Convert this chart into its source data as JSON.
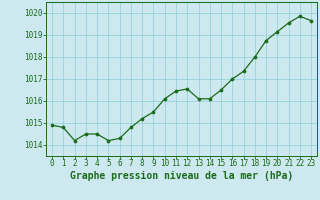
{
  "x": [
    0,
    1,
    2,
    3,
    4,
    5,
    6,
    7,
    8,
    9,
    10,
    11,
    12,
    13,
    14,
    15,
    16,
    17,
    18,
    19,
    20,
    21,
    22,
    23
  ],
  "y": [
    1014.9,
    1014.8,
    1014.2,
    1014.5,
    1014.5,
    1014.2,
    1014.3,
    1014.8,
    1015.2,
    1015.5,
    1016.1,
    1016.45,
    1016.55,
    1016.1,
    1016.1,
    1016.5,
    1017.0,
    1017.35,
    1018.0,
    1018.75,
    1019.15,
    1019.55,
    1019.85,
    1019.65
  ],
  "line_color": "#1a6b1a",
  "marker_color": "#1a6b1a",
  "bg_color": "#cde8ef",
  "grid_color": "#8ecfdb",
  "title": "Graphe pression niveau de la mer (hPa)",
  "ylim_min": 1013.5,
  "ylim_max": 1020.5,
  "xlim_min": -0.5,
  "xlim_max": 23.5,
  "yticks": [
    1014,
    1015,
    1016,
    1017,
    1018,
    1019,
    1020
  ],
  "xticks": [
    0,
    1,
    2,
    3,
    4,
    5,
    6,
    7,
    8,
    9,
    10,
    11,
    12,
    13,
    14,
    15,
    16,
    17,
    18,
    19,
    20,
    21,
    22,
    23
  ],
  "title_fontsize": 7.0,
  "title_color": "#1a6b1a",
  "tick_fontsize": 5.5,
  "axis_label_color": "#1a6b1a",
  "spine_color": "#1a6b1a"
}
